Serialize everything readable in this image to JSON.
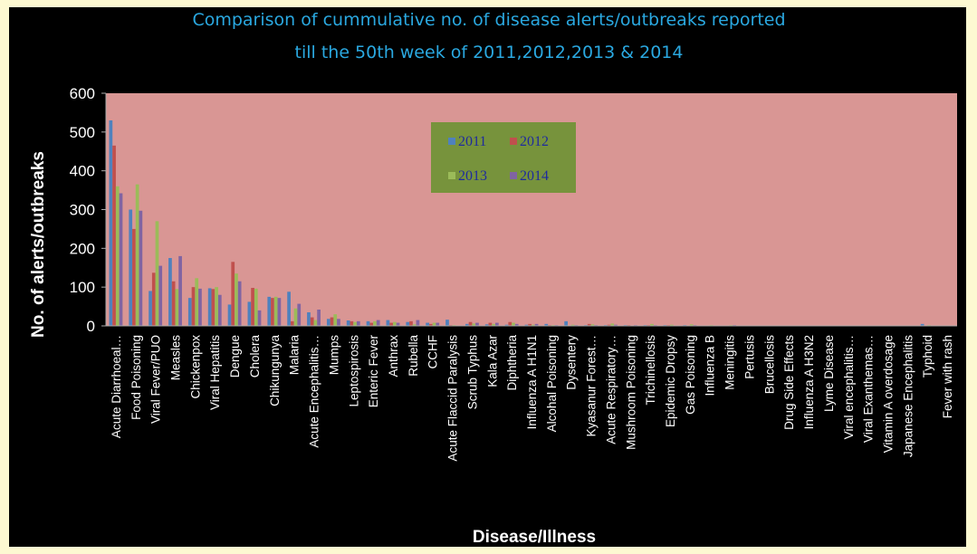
{
  "chart_data": {
    "type": "bar",
    "title_lines": [
      "Comparison of cummulative no. of disease alerts/outbreaks reported",
      "till the 50th week of 2011,2012,2013 & 2014"
    ],
    "xlabel": "Disease/Illness",
    "ylabel": "No. of alerts/outbreaks",
    "ylim": [
      0,
      600
    ],
    "yticks": [
      0,
      100,
      200,
      300,
      400,
      500,
      600
    ],
    "grid": false,
    "legend_position": "top-center",
    "plot_background": "#d99694",
    "categories": [
      "Acute Diarrhoeal…",
      "Food Poisoning",
      "Viral Fever/PUO",
      "Measles",
      "Chickenpox",
      "Viral Hepatitis",
      "Dengue",
      "Cholera",
      "Chikungunya",
      "Malaria",
      "Acute Encephalitis…",
      "Mumps",
      "Leptospirosis",
      "Enteric Fever",
      "Anthrax",
      "Rubella",
      "CCHF",
      "Acute Flaccid Paralysis",
      "Scrub Typhus",
      "Kala Azar",
      "Diphtheria",
      "Influenza A H1N1",
      "Alcohal Poisoning",
      "Dysentery",
      "Kyasanur Forest…",
      "Acute Respiratory…",
      "Mushroom Poisoning",
      "Trichinellosis",
      "Epidemic Dropsy",
      "Gas Poisoning",
      "Influenza B",
      "Meningitis",
      "Pertusis",
      "Brucellosis",
      "Drug Side Effects",
      "Influenza A H3N2",
      "Lyme Disease",
      "Viral encephalitis…",
      "Viral Exanthemas…",
      "Vitamin A overdosage",
      "Japanese Encephalitis",
      "Typhoid",
      "Fever with rash"
    ],
    "series": [
      {
        "name": "2011",
        "color": "#4f81bd",
        "values": [
          530,
          300,
          90,
          175,
          72,
          97,
          55,
          62,
          75,
          88,
          35,
          18,
          14,
          12,
          15,
          10,
          8,
          16,
          5,
          4,
          3,
          3,
          5,
          12,
          2,
          2,
          2,
          2,
          2,
          2,
          1,
          1,
          1,
          1,
          1,
          1,
          1,
          1,
          1,
          1,
          1,
          5,
          1
        ]
      },
      {
        "name": "2012",
        "color": "#c0504d",
        "values": [
          465,
          250,
          137,
          115,
          100,
          95,
          165,
          98,
          72,
          12,
          22,
          22,
          12,
          8,
          8,
          12,
          5,
          2,
          10,
          8,
          10,
          5,
          2,
          1,
          5,
          3,
          2,
          2,
          2,
          1,
          1,
          1,
          1,
          1,
          1,
          1,
          1,
          1,
          1,
          1,
          1,
          1,
          1
        ]
      },
      {
        "name": "2013",
        "color": "#9bbb59",
        "values": [
          360,
          365,
          270,
          95,
          123,
          100,
          135,
          96,
          75,
          45,
          15,
          30,
          10,
          12,
          10,
          4,
          8,
          2,
          6,
          5,
          8,
          3,
          2,
          3,
          4,
          6,
          1,
          5,
          3,
          4,
          2,
          2,
          1,
          1,
          1,
          1,
          1,
          1,
          1,
          1,
          1,
          2,
          1
        ]
      },
      {
        "name": "2014",
        "color": "#8064a2",
        "values": [
          342,
          297,
          155,
          180,
          96,
          80,
          115,
          40,
          72,
          57,
          42,
          18,
          12,
          15,
          8,
          15,
          8,
          1,
          8,
          8,
          5,
          5,
          2,
          2,
          2,
          3,
          2,
          2,
          1,
          2,
          1,
          2,
          1,
          1,
          1,
          1,
          1,
          1,
          1,
          1,
          1,
          1,
          1
        ]
      }
    ]
  }
}
